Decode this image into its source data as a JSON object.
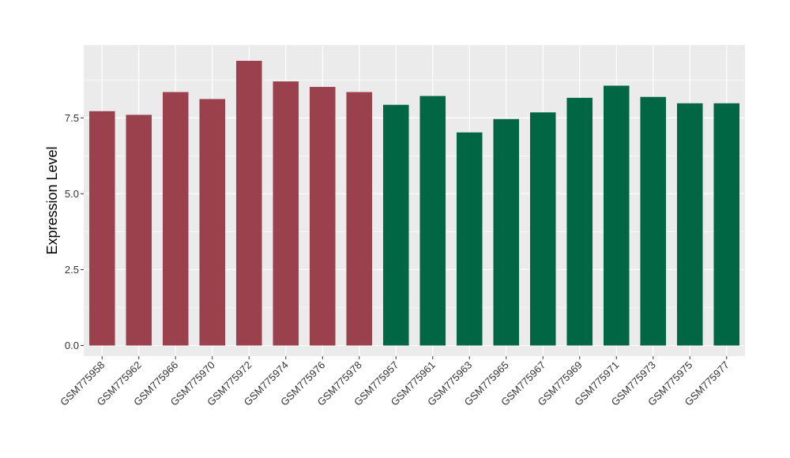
{
  "chart_data": {
    "type": "bar",
    "title": "",
    "xlabel": "",
    "ylabel": "Expression Level",
    "ylim": [
      -0.35,
      9.9
    ],
    "yticks": [
      0.0,
      2.5,
      5.0,
      7.5
    ],
    "ytick_labels": [
      "0.0",
      "2.5",
      "5.0",
      "7.5"
    ],
    "grid": true,
    "legend": "none",
    "categories": [
      "GSM775958",
      "GSM775962",
      "GSM775966",
      "GSM775970",
      "GSM775972",
      "GSM775974",
      "GSM775976",
      "GSM775978",
      "GSM775957",
      "GSM775961",
      "GSM775963",
      "GSM775965",
      "GSM775967",
      "GSM775969",
      "GSM775971",
      "GSM775973",
      "GSM775975",
      "GSM775977"
    ],
    "values": [
      7.72,
      7.6,
      8.35,
      8.12,
      9.38,
      8.7,
      8.52,
      8.35,
      7.93,
      8.22,
      7.02,
      7.46,
      7.68,
      8.16,
      8.56,
      8.19,
      7.98,
      7.98
    ],
    "colors": [
      "#9a414d",
      "#9a414d",
      "#9a414d",
      "#9a414d",
      "#9a414d",
      "#9a414d",
      "#9a414d",
      "#9a414d",
      "#006644",
      "#006644",
      "#006644",
      "#006644",
      "#006644",
      "#006644",
      "#006644",
      "#006644",
      "#006644",
      "#006644"
    ],
    "panel_background": "#ebebeb",
    "grid_color": "#ffffff"
  }
}
